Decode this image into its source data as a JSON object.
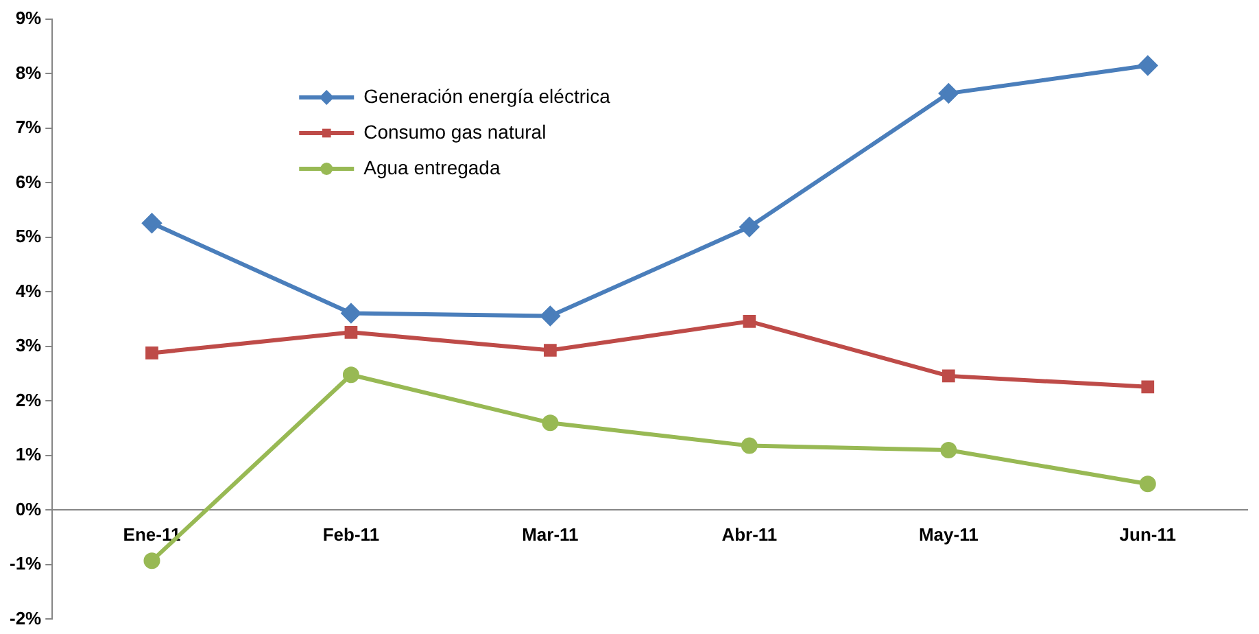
{
  "chart_data": {
    "type": "line",
    "categories": [
      "Ene-11",
      "Feb-11",
      "Mar-11",
      "Abr-11",
      "May-11",
      "Jun-11"
    ],
    "series": [
      {
        "name": "Generación energía eléctrica",
        "color": "#4a7ebb",
        "marker": "diamond",
        "values": [
          5.26,
          3.61,
          3.56,
          5.19,
          7.64,
          8.15
        ]
      },
      {
        "name": "Consumo gas natural",
        "color": "#be4b48",
        "marker": "square",
        "values": [
          2.88,
          3.26,
          2.93,
          3.46,
          2.46,
          2.26
        ]
      },
      {
        "name": "Agua entregada",
        "color": "#98b954",
        "marker": "circle",
        "values": [
          -0.93,
          2.48,
          1.6,
          1.18,
          1.1,
          0.48
        ]
      }
    ],
    "ylim": [
      -2,
      9
    ],
    "yticks": [
      {
        "value": -2,
        "label": "-2%"
      },
      {
        "value": -1,
        "label": "-1%"
      },
      {
        "value": 0,
        "label": "0%"
      },
      {
        "value": 1,
        "label": "1%"
      },
      {
        "value": 2,
        "label": "2%"
      },
      {
        "value": 3,
        "label": "3%"
      },
      {
        "value": 4,
        "label": "4%"
      },
      {
        "value": 5,
        "label": "5%"
      },
      {
        "value": 6,
        "label": "6%"
      },
      {
        "value": 7,
        "label": "7%"
      },
      {
        "value": 8,
        "label": "8%"
      },
      {
        "value": 9,
        "label": "9%"
      }
    ],
    "grid": false,
    "legend": "top",
    "line_style": "solid"
  }
}
